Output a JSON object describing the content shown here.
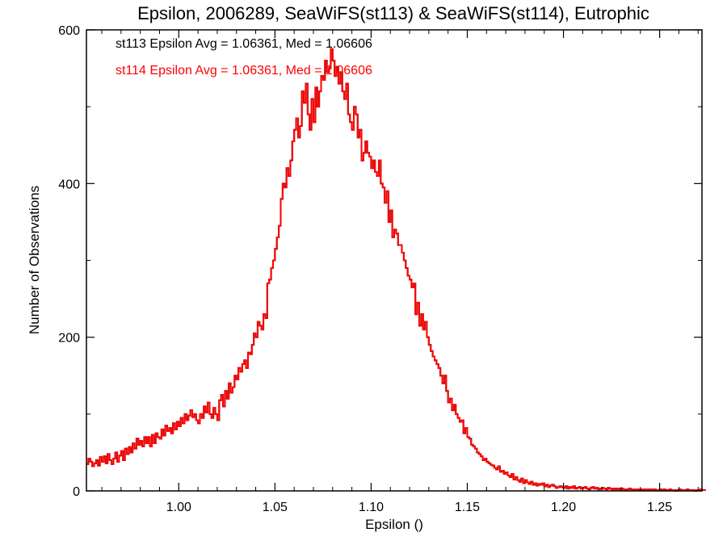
{
  "chart_data": {
    "type": "histogram",
    "title": "Epsilon, 2006289, SeaWiFS(st113) & SeaWiFS(st114), Eutrophic",
    "xlabel": "Epsilon ()",
    "ylabel": "Number of Observations",
    "xlim": [
      0.952,
      1.272
    ],
    "ylim": [
      0,
      600
    ],
    "x_ticks": [
      "1.00",
      "1.05",
      "1.10",
      "1.15",
      "1.20",
      "1.25"
    ],
    "y_ticks": [
      "0",
      "200",
      "400",
      "600"
    ],
    "annotations": [
      {
        "text": "st113 Epsilon Avg = 1.06361, Med = 1.06606",
        "color": "#000000"
      },
      {
        "text": "st114 Epsilon Avg = 1.06361, Med = 1.06606",
        "color": "#ff0000"
      }
    ],
    "bin_width": 0.001,
    "series": [
      {
        "name": "st113",
        "color": "#000000",
        "x_start": 0.952,
        "counts": [
          35,
          42,
          38,
          32,
          36,
          40,
          33,
          44,
          38,
          45,
          36,
          48,
          40,
          35,
          42,
          50,
          38,
          46,
          52,
          40,
          55,
          48,
          57,
          50,
          62,
          55,
          68,
          60,
          65,
          58,
          70,
          62,
          70,
          58,
          73,
          62,
          75,
          70,
          68,
          80,
          72,
          85,
          78,
          82,
          75,
          88,
          80,
          90,
          84,
          95,
          88,
          100,
          92,
          98,
          105,
          96,
          100,
          92,
          88,
          100,
          95,
          110,
          102,
          115,
          100,
          95,
          108,
          100,
          92,
          118,
          125,
          110,
          130,
          120,
          140,
          128,
          135,
          150,
          145,
          160,
          155,
          165,
          170,
          160,
          180,
          178,
          190,
          205,
          200,
          220,
          215,
          210,
          230,
          225,
          270,
          275,
          290,
          300,
          315,
          330,
          345,
          380,
          400,
          395,
          420,
          410,
          430,
          455,
          470,
          485,
          460,
          475,
          520,
          505,
          530,
          490,
          470,
          510,
          480,
          525,
          500,
          520,
          540,
          535,
          560,
          545,
          550,
          575,
          560,
          540,
          552,
          530,
          545,
          520,
          510,
          530,
          490,
          480,
          470,
          500,
          490,
          460,
          470,
          430,
          440,
          455,
          440,
          435,
          420,
          430,
          415,
          410,
          430,
          400,
          395,
          375,
          390,
          350,
          365,
          330,
          340,
          335,
          320,
          320,
          310,
          300,
          290,
          280,
          275,
          265,
          270,
          230,
          245,
          215,
          230,
          210,
          220,
          200,
          190,
          182,
          175,
          170,
          165,
          160,
          150,
          140,
          150,
          130,
          115,
          120,
          105,
          112,
          100,
          95,
          90,
          92,
          75,
          82,
          70,
          68,
          60,
          58,
          55,
          50,
          48,
          45,
          40,
          42,
          38,
          36,
          34,
          33,
          30,
          28,
          32,
          25,
          26,
          22,
          24,
          20,
          18,
          22,
          15,
          18,
          14,
          12,
          16,
          10,
          14,
          11,
          9,
          12,
          8,
          10,
          7,
          9,
          8,
          10,
          6,
          8,
          5,
          7,
          8,
          6,
          4,
          5,
          6,
          5,
          4,
          6,
          3,
          5,
          4,
          6,
          3,
          4,
          5,
          3,
          4,
          5,
          3,
          2,
          4,
          5,
          3,
          4,
          2,
          3,
          4,
          3,
          2,
          4,
          3,
          2,
          3,
          2,
          3,
          2,
          3,
          2,
          1,
          2,
          3,
          2,
          1,
          2,
          2,
          1,
          2,
          1,
          2,
          1,
          2,
          2,
          1,
          2,
          1,
          1,
          2,
          1,
          2,
          1,
          1,
          2,
          1,
          1,
          0,
          1,
          2,
          1,
          1,
          1,
          2,
          1,
          1,
          1,
          0,
          1,
          1,
          2,
          1,
          1
        ]
      },
      {
        "name": "st114",
        "color": "#ff0000",
        "x_start": 0.952,
        "counts": [
          35,
          42,
          38,
          32,
          36,
          40,
          33,
          44,
          38,
          45,
          36,
          48,
          40,
          35,
          42,
          50,
          38,
          46,
          52,
          40,
          55,
          48,
          57,
          50,
          62,
          55,
          68,
          60,
          65,
          58,
          70,
          62,
          70,
          58,
          73,
          62,
          75,
          70,
          68,
          80,
          72,
          85,
          78,
          82,
          75,
          88,
          80,
          90,
          84,
          95,
          88,
          100,
          92,
          98,
          105,
          96,
          100,
          92,
          88,
          100,
          95,
          110,
          102,
          115,
          100,
          95,
          108,
          100,
          92,
          118,
          125,
          110,
          130,
          120,
          140,
          128,
          135,
          150,
          145,
          160,
          155,
          165,
          170,
          160,
          180,
          178,
          190,
          205,
          200,
          220,
          215,
          210,
          230,
          225,
          270,
          275,
          290,
          300,
          315,
          330,
          345,
          380,
          400,
          395,
          420,
          410,
          430,
          455,
          470,
          485,
          460,
          475,
          520,
          505,
          530,
          490,
          470,
          510,
          480,
          525,
          500,
          520,
          540,
          535,
          560,
          545,
          550,
          575,
          560,
          540,
          552,
          530,
          545,
          520,
          510,
          530,
          490,
          480,
          470,
          500,
          490,
          460,
          470,
          430,
          440,
          455,
          440,
          435,
          420,
          430,
          415,
          410,
          430,
          400,
          395,
          375,
          390,
          350,
          365,
          330,
          340,
          335,
          320,
          320,
          310,
          300,
          290,
          280,
          275,
          265,
          270,
          230,
          245,
          215,
          230,
          210,
          220,
          200,
          190,
          182,
          175,
          170,
          165,
          160,
          150,
          140,
          150,
          130,
          115,
          120,
          105,
          112,
          100,
          95,
          90,
          92,
          75,
          82,
          70,
          68,
          60,
          58,
          55,
          50,
          48,
          45,
          40,
          42,
          38,
          36,
          34,
          33,
          30,
          28,
          32,
          25,
          26,
          22,
          24,
          20,
          18,
          22,
          15,
          18,
          14,
          12,
          16,
          10,
          14,
          11,
          9,
          12,
          8,
          10,
          7,
          9,
          8,
          10,
          6,
          8,
          5,
          7,
          8,
          6,
          4,
          5,
          6,
          5,
          4,
          6,
          3,
          5,
          4,
          6,
          3,
          4,
          5,
          3,
          4,
          5,
          3,
          2,
          4,
          5,
          3,
          4,
          2,
          3,
          4,
          3,
          2,
          4,
          3,
          2,
          3,
          2,
          3,
          2,
          3,
          2,
          1,
          2,
          3,
          2,
          1,
          2,
          2,
          1,
          2,
          1,
          2,
          1,
          2,
          2,
          1,
          2,
          1,
          1,
          2,
          1,
          2,
          1,
          1,
          2,
          1,
          1,
          0,
          1,
          2,
          1,
          1,
          1,
          2,
          1,
          1,
          1,
          0,
          1,
          1,
          2,
          1,
          1
        ]
      }
    ]
  }
}
